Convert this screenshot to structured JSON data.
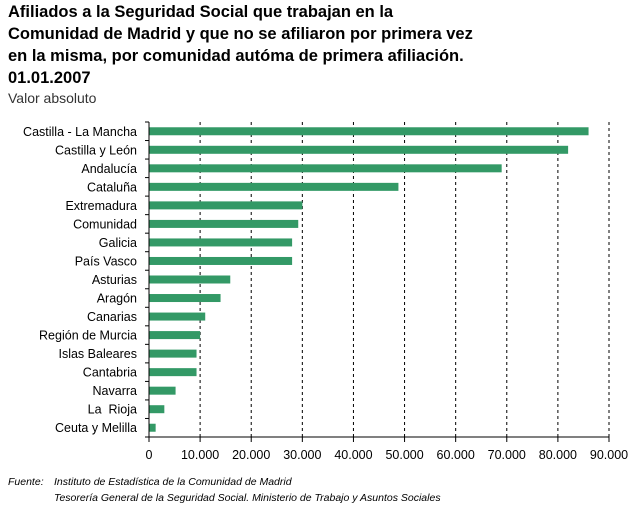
{
  "title_lines": [
    "Afiliados a la Seguridad Social que trabajan en la",
    "Comunidad de Madrid y que no se afiliaron por primera vez",
    "en la misma, por comunidad autóma de primera afiliación.",
    "01.01.2007"
  ],
  "subtitle": "Valor absoluto",
  "source": {
    "label": "Fuente:",
    "line1": "Instituto de Estadística de la Comunidad de Madrid",
    "line2": "Tesorería General de la Seguridad Social. Ministerio de Trabajo y Asuntos Sociales"
  },
  "colors": {
    "bar": "#339966",
    "gridline": "#000000",
    "axis": "#000000"
  },
  "chart_data": {
    "type": "bar",
    "orientation": "horizontal",
    "title": "Afiliados a la Seguridad Social que trabajan en la Comunidad de Madrid y que no se afiliaron por primera vez en la misma, por comunidad autóma de primera afiliación. 01.01.2007",
    "subtitle": "Valor absoluto",
    "xlabel": "",
    "ylabel": "",
    "xlim": [
      0,
      90000
    ],
    "grid": "vertical dashed",
    "categories": [
      "Castilla - La Mancha",
      "Castilla y León",
      "Andalucía",
      "Cataluña",
      "Extremadura",
      "Comunidad",
      "Galicia",
      "País Vasco",
      "Asturias",
      "Aragón",
      "Canarias",
      "Región de Murcia",
      "Islas Baleares",
      "Cantabria",
      "Navarra",
      "La  Rioja",
      "Ceuta y Melilla"
    ],
    "values": [
      86000,
      82000,
      69000,
      48800,
      30000,
      29200,
      28000,
      28000,
      15900,
      14000,
      11000,
      10000,
      9300,
      9300,
      5200,
      3000,
      1300
    ],
    "ticks": [
      0,
      10000,
      20000,
      30000,
      40000,
      50000,
      60000,
      70000,
      80000,
      90000
    ],
    "tick_labels": [
      "0",
      "10.000",
      "20.000",
      "30.000",
      "40.000",
      "50.000",
      "60.000",
      "70.000",
      "80.000",
      "90.000"
    ]
  }
}
